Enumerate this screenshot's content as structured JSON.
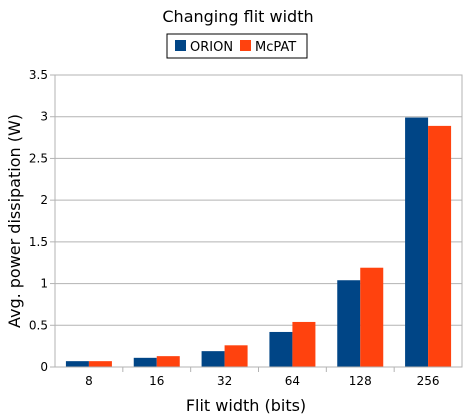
{
  "chart_data": {
    "type": "bar",
    "title": "Changing flit width",
    "xlabel": "Flit width (bits)",
    "ylabel": "Avg. power dissipation (W)",
    "categories": [
      "8",
      "16",
      "32",
      "64",
      "128",
      "256"
    ],
    "series": [
      {
        "name": "ORION",
        "color": "#004586",
        "values": [
          0.07,
          0.11,
          0.19,
          0.42,
          1.04,
          2.99
        ]
      },
      {
        "name": "McPAT",
        "color": "#ff420e",
        "values": [
          0.07,
          0.13,
          0.26,
          0.54,
          1.19,
          2.89
        ]
      }
    ],
    "ylim": [
      0,
      3.5
    ],
    "yticks": [
      "0",
      "0.5",
      "1",
      "1.5",
      "2",
      "2.5",
      "3",
      "3.5"
    ],
    "grid": "horizontal",
    "legend_position": "top"
  }
}
